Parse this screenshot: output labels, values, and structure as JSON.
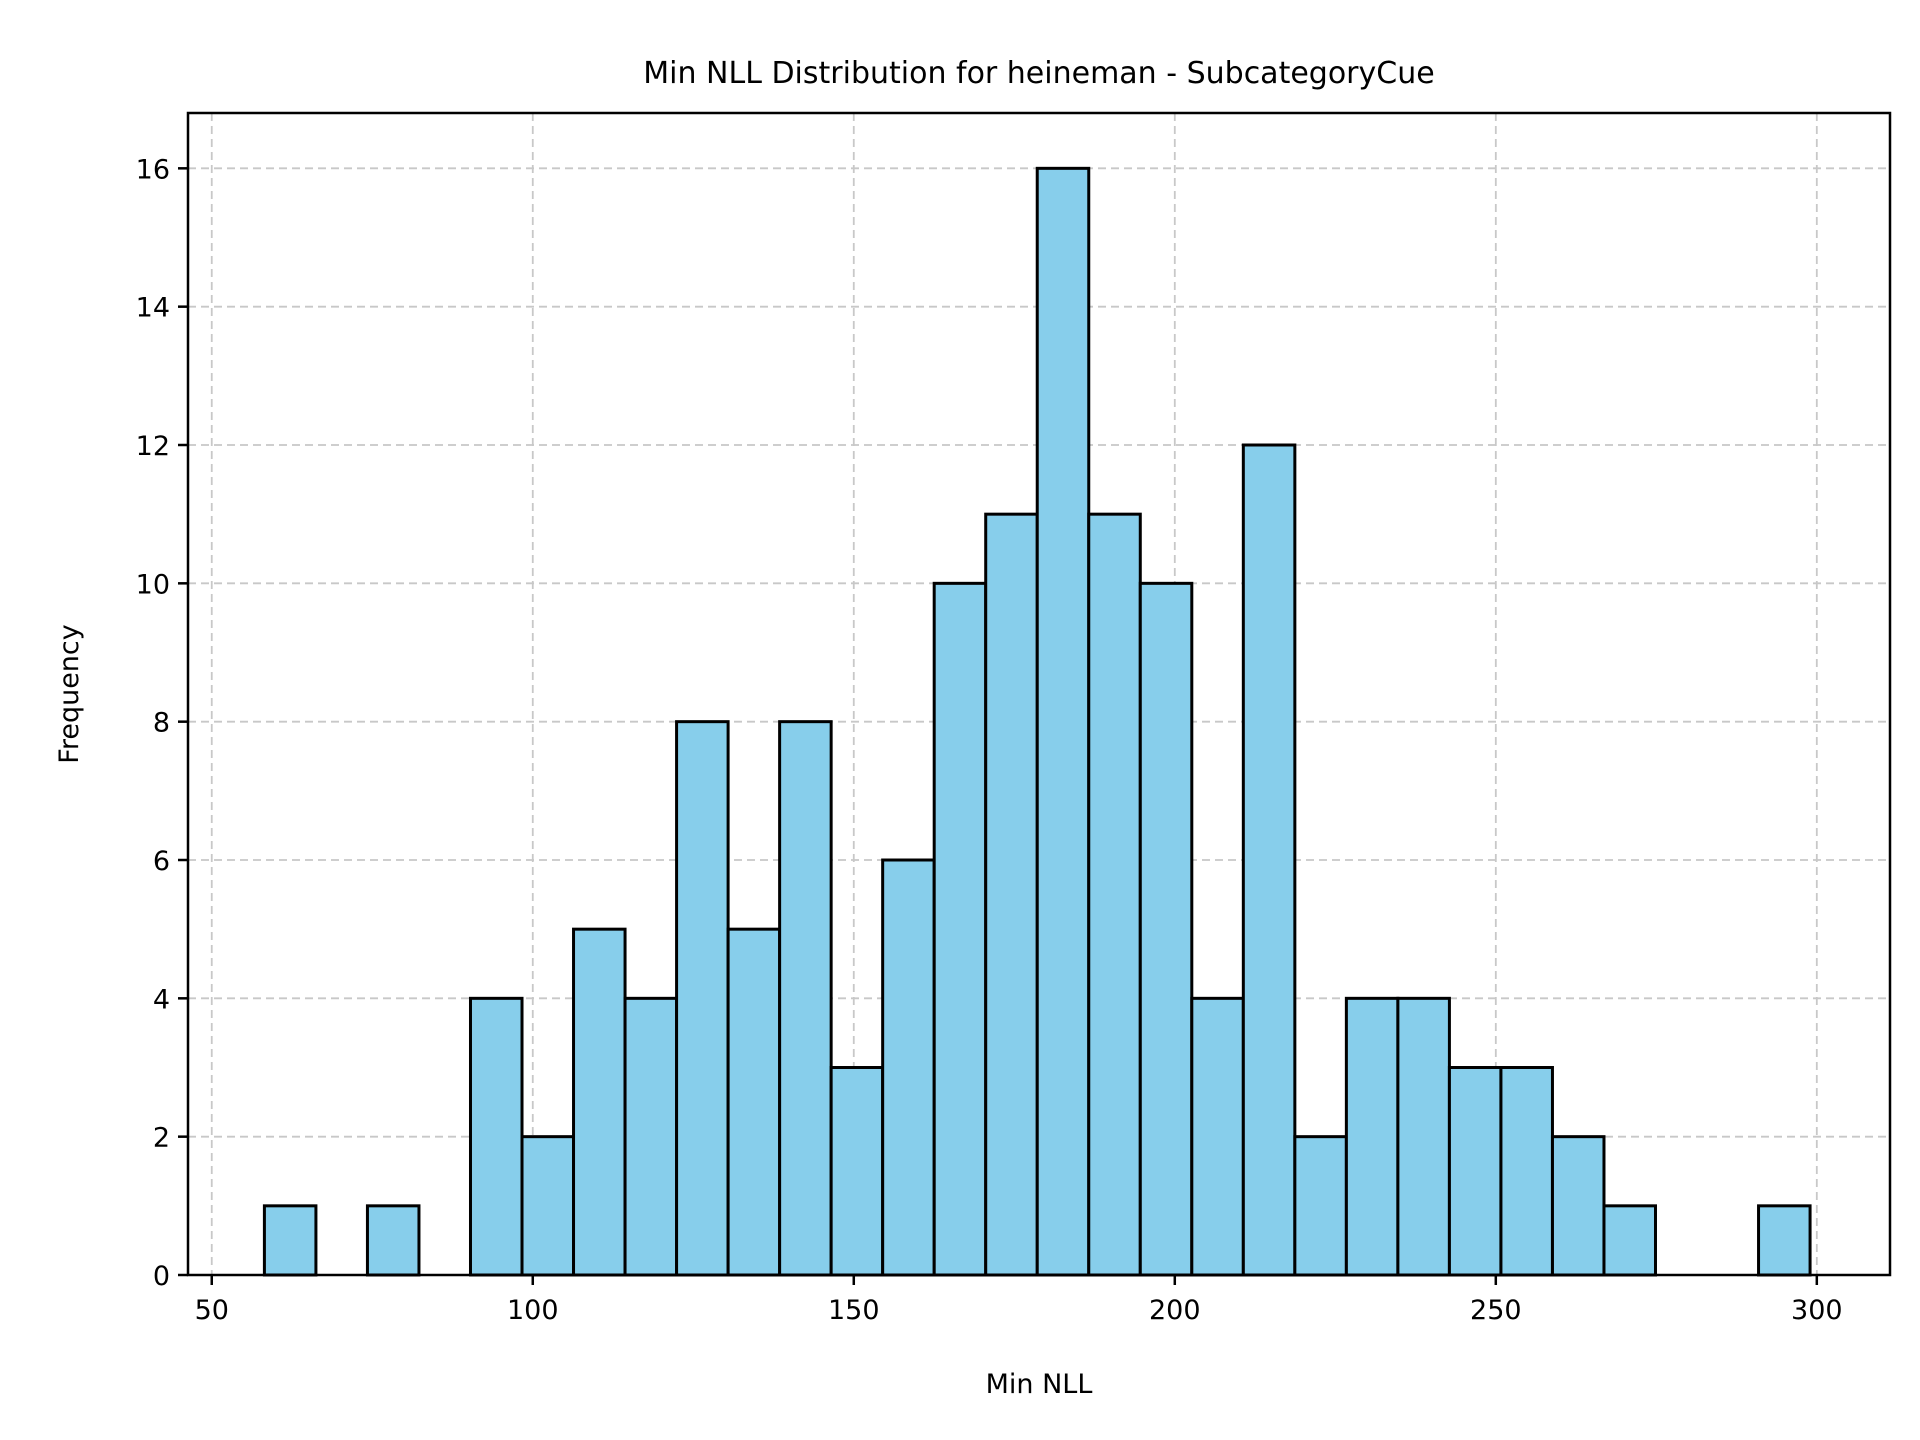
{
  "chart_data": {
    "type": "bar",
    "title": "Min NLL Distribution for heineman - SubcategoryCue",
    "xlabel": "Min NLL",
    "ylabel": "Frequency",
    "xlim": [
      46.3,
      311.4
    ],
    "ylim": [
      0,
      16.8
    ],
    "xticks": [
      50,
      100,
      150,
      200,
      250,
      300
    ],
    "yticks": [
      0,
      2,
      4,
      6,
      8,
      10,
      12,
      14,
      16
    ],
    "grid": true,
    "bar_color": "#87CEEB",
    "edge_color": "#000000",
    "bin_start": 58.2,
    "bin_width": 8.025,
    "values": [
      1,
      0,
      1,
      0,
      4,
      2,
      5,
      4,
      8,
      5,
      8,
      3,
      6,
      10,
      11,
      16,
      11,
      10,
      4,
      12,
      2,
      4,
      4,
      3,
      3,
      2,
      1,
      0,
      0,
      1
    ]
  }
}
